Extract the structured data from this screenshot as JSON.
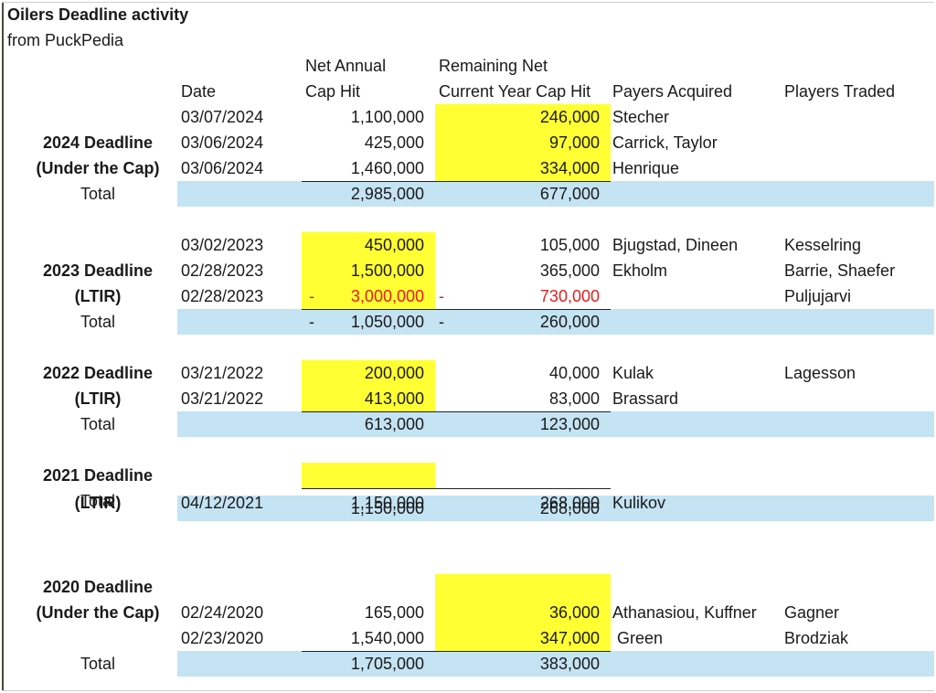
{
  "title": "Oilers Deadline activity",
  "subtitle": "from PuckPedia",
  "headers": {
    "date": "Date",
    "net_line1": "Net Annual",
    "net_line2": "Cap Hit",
    "rem_line1": "Remaining Net",
    "rem_line2": "Current Year Cap Hit",
    "acquired": "Payers Acquired",
    "traded": "Players Traded"
  },
  "total_label": "Total",
  "negative_marker": "-",
  "colors": {
    "highlight": "#ffff33",
    "total_fill": "#c4e3f3",
    "negative_text": "#e02020"
  },
  "groups": [
    {
      "label_line1": "2024 Deadline",
      "label_line2": "(Under the Cap)",
      "highlight_column": "remaining",
      "rows": [
        {
          "date": "03/07/2024",
          "net": "1,100,000",
          "remaining": "246,000",
          "acquired": "Stecher",
          "traded": ""
        },
        {
          "date": "03/06/2024",
          "net": "425,000",
          "remaining": "97,000",
          "acquired": "Carrick, Taylor",
          "traded": ""
        },
        {
          "date": "03/06/2024",
          "net": "1,460,000",
          "remaining": "334,000",
          "acquired": "Henrique",
          "traded": ""
        }
      ],
      "total": {
        "net": "2,985,000",
        "remaining": "677,000"
      }
    },
    {
      "label_line1": "2023 Deadline",
      "label_line2": "(LTIR)",
      "highlight_column": "net",
      "rows": [
        {
          "date": "03/02/2023",
          "net": "450,000",
          "remaining": "105,000",
          "acquired": "Bjugstad, Dineen",
          "traded": "Kesselring"
        },
        {
          "date": "02/28/2023",
          "net": "1,500,000",
          "remaining": "365,000",
          "acquired": "Ekholm",
          "traded": "Barrie, Shaefer"
        },
        {
          "date": "02/28/2023",
          "net": "3,000,000",
          "remaining": "730,000",
          "acquired": "",
          "traded": "Puljujarvi",
          "negative": true
        }
      ],
      "total": {
        "net": "1,050,000",
        "remaining": "260,000"
      }
    },
    {
      "label_line1": "2022 Deadline",
      "label_line2": "(LTIR)",
      "highlight_column": "net",
      "rows": [
        {
          "date": "03/21/2022",
          "net": "200,000",
          "remaining": "40,000",
          "acquired": "Kulak",
          "traded": "Lagesson"
        },
        {
          "date": "03/21/2022",
          "net": "413,000",
          "remaining": "83,000",
          "acquired": "Brassard",
          "traded": ""
        }
      ],
      "total": {
        "net": "613,000",
        "remaining": "123,000"
      }
    },
    {
      "label_line1": "2021 Deadline",
      "label_line2": "(LTIR)",
      "highlight_column": "net",
      "rows": [
        {
          "date": "04/12/2021",
          "net": "1,150,000",
          "remaining": "268,000",
          "acquired": "Kulikov",
          "traded": ""
        }
      ],
      "total": {
        "net": "1,150,000",
        "remaining": "268,000"
      }
    },
    {
      "label_line1": "2020 Deadline",
      "label_line2": "(Under the Cap)",
      "highlight_column": "remaining",
      "rows": [
        {
          "date": "02/24/2020",
          "net": "165,000",
          "remaining": "36,000",
          "acquired": "Athanasiou, Kuffner",
          "traded": "Gagner"
        },
        {
          "date": "02/23/2020",
          "net": "1,540,000",
          "remaining": "347,000",
          "acquired": " Green",
          "traded": "Brodziak"
        }
      ],
      "total": {
        "net": "1,705,000",
        "remaining": "383,000"
      }
    }
  ]
}
